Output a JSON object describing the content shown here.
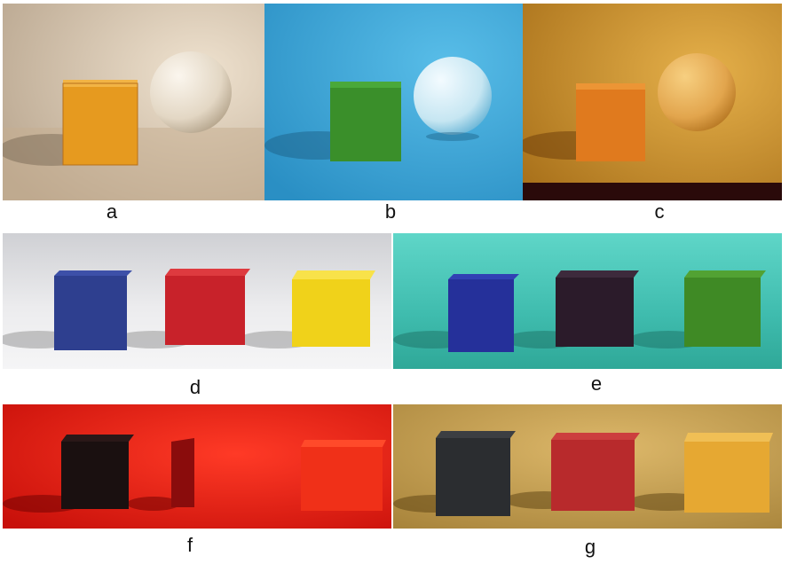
{
  "captions": [
    "a",
    "b",
    "c",
    "d",
    "e",
    "f",
    "g"
  ],
  "panels": {
    "a": {
      "light": "warm white",
      "background": "#d9c6ad",
      "cube": "#e69a1f",
      "sphere": "#efe6d7"
    },
    "b": {
      "light": "blue",
      "background": "#3aa7d9",
      "cube": "#3a8f2a",
      "sphere": "#cfeaf4"
    },
    "c": {
      "light": "orange",
      "background": "#d49a2a",
      "cube": "#e07a1e",
      "sphere": "#eab25c"
    },
    "d": {
      "light": "white",
      "background": "#e4e4e6",
      "cubes": [
        "#2e3f8f",
        "#c8222a",
        "#f0d21a"
      ]
    },
    "e": {
      "light": "cyan",
      "background": "#4ecfc0",
      "cubes": [
        "#25309a",
        "#2b1b2a",
        "#3f8a25"
      ]
    },
    "f": {
      "light": "red",
      "background": "#f01a12",
      "cubes": [
        "#1a1010",
        "#9a0f0f",
        "#f03018"
      ]
    },
    "g": {
      "light": "yellow",
      "background": "#c9a657",
      "cubes": [
        "#2b2d30",
        "#b82a2c",
        "#e6a832"
      ]
    }
  }
}
